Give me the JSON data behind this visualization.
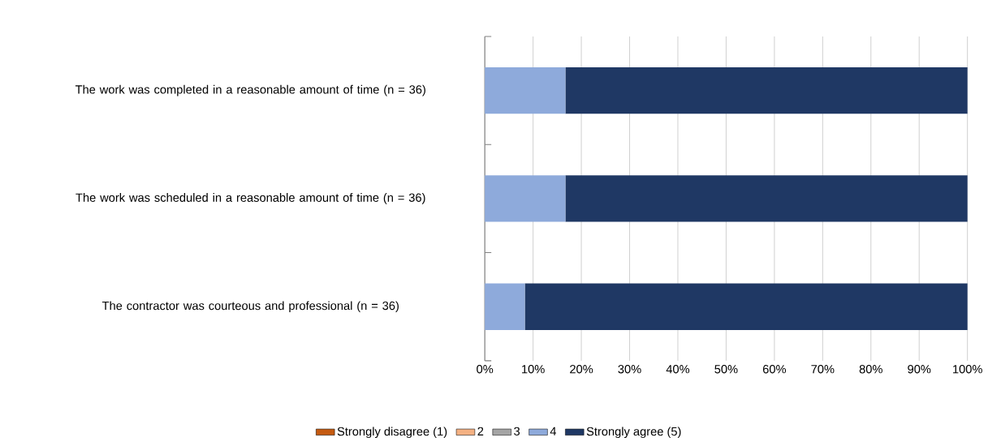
{
  "chart_data": {
    "type": "bar",
    "orientation": "horizontal",
    "stacked": true,
    "categories": [
      "The work was completed in a reasonable amount of time (n = 36)",
      "The work was scheduled in a reasonable amount of time (n = 36)",
      "The contractor was courteous and professional (n = 36)"
    ],
    "series": [
      {
        "name": "Strongly disagree (1)",
        "color": "#c55a11",
        "values": [
          0,
          0,
          0
        ]
      },
      {
        "name": "2",
        "color": "#f4b183",
        "values": [
          0,
          0,
          0
        ]
      },
      {
        "name": "3",
        "color": "#a5a5a5",
        "values": [
          0,
          0,
          0
        ]
      },
      {
        "name": "4",
        "color": "#8eaadb",
        "values": [
          16.7,
          16.7,
          8.3
        ]
      },
      {
        "name": "Strongly agree (5)",
        "color": "#1f3864",
        "values": [
          83.3,
          83.3,
          91.7
        ]
      }
    ],
    "xlim": [
      0,
      100
    ],
    "xticks": [
      {
        "value": 0,
        "label": "0%"
      },
      {
        "value": 10,
        "label": "10%"
      },
      {
        "value": 20,
        "label": "20%"
      },
      {
        "value": 30,
        "label": "30%"
      },
      {
        "value": 40,
        "label": "40%"
      },
      {
        "value": 50,
        "label": "50%"
      },
      {
        "value": 60,
        "label": "60%"
      },
      {
        "value": 70,
        "label": "70%"
      },
      {
        "value": 80,
        "label": "80%"
      },
      {
        "value": 90,
        "label": "90%"
      },
      {
        "value": 100,
        "label": "100%"
      }
    ],
    "grid": "x",
    "legend": "bottom"
  }
}
